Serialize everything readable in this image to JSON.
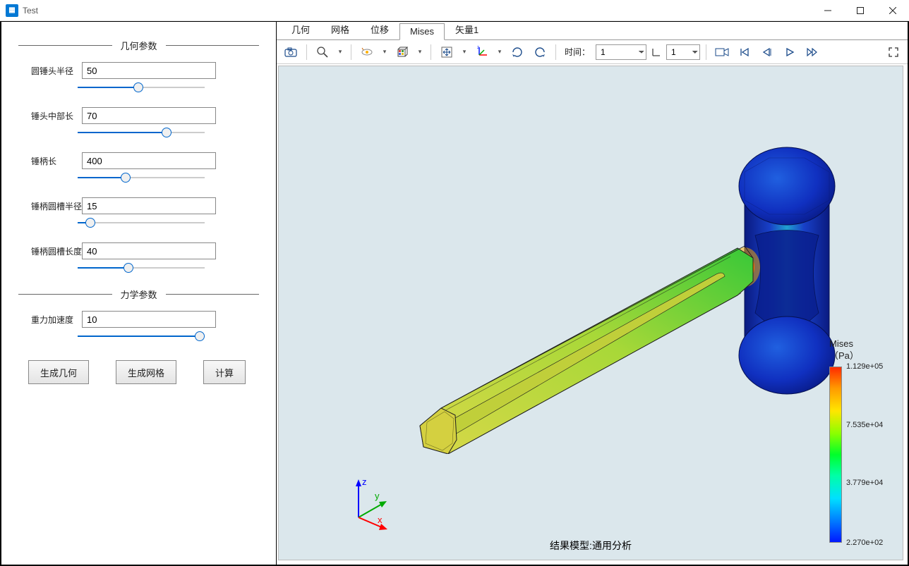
{
  "window": {
    "title": "Test"
  },
  "sidebar": {
    "section_geom": "几何参数",
    "section_phys": "力学参数",
    "params": [
      {
        "label": "圆锤头半径",
        "value": "50",
        "slider_pct": 48
      },
      {
        "label": "锤头中部长",
        "value": "70",
        "slider_pct": 70
      },
      {
        "label": "锤柄长",
        "value": "400",
        "slider_pct": 38
      },
      {
        "label": "锤柄圆槽半径",
        "value": "15",
        "slider_pct": 10
      },
      {
        "label": "锤柄圆槽长度",
        "value": "40",
        "slider_pct": 40
      }
    ],
    "phys_params": [
      {
        "label": "重力加速度",
        "value": "10",
        "slider_pct": 96
      }
    ],
    "btn_geom": "生成几何",
    "btn_mesh": "生成网格",
    "btn_calc": "计算"
  },
  "tabs": {
    "items": [
      "几何",
      "网格",
      "位移",
      "Mises",
      "矢量1"
    ],
    "active_index": 3
  },
  "toolbar": {
    "time_label": "时间：",
    "time_value": "1",
    "frame_value": "1"
  },
  "viewport": {
    "background": "#dbe7ec",
    "result_label": "结果模型:通用分析",
    "triad": {
      "x": "x",
      "y": "y",
      "z": "z",
      "x_color": "#ff0000",
      "y_color": "#00aa00",
      "z_color": "#0000ff"
    }
  },
  "legend": {
    "title1": "Mises",
    "title2": "（Pa）",
    "ticks": [
      {
        "pos": 0,
        "label": "1.129e+05"
      },
      {
        "pos": 33,
        "label": "7.535e+04"
      },
      {
        "pos": 66,
        "label": "3.779e+04"
      },
      {
        "pos": 100,
        "label": "2.270e+02"
      }
    ],
    "gradient_stops": [
      "#ff2a00",
      "#ff9a00",
      "#ffe600",
      "#8aff00",
      "#00ff2a",
      "#00ffa6",
      "#00e0ff",
      "#007bff",
      "#0018ff"
    ]
  },
  "hammer": {
    "handle_fill_start": "#d8d848",
    "handle_fill_end": "#38c838",
    "head_fill_main": "#1030c0",
    "head_fill_light": "#2060e0",
    "hotspot_color": "#ff3000",
    "outline": "#202020"
  }
}
